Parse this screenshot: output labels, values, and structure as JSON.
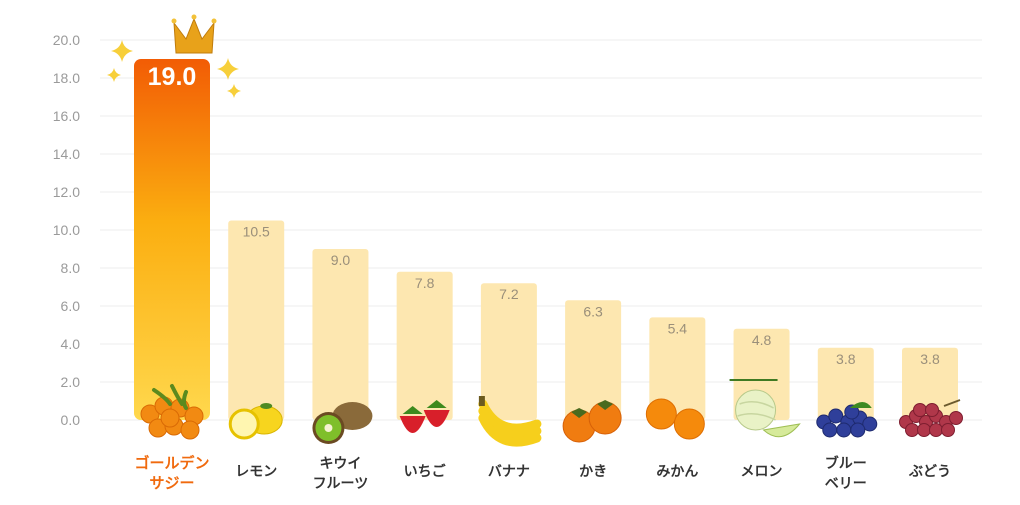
{
  "chart_data": {
    "type": "bar",
    "ylim": [
      0,
      20
    ],
    "yticks": [
      "0.0",
      "2.0",
      "4.0",
      "6.0",
      "8.0",
      "10.0",
      "12.0",
      "14.0",
      "16.0",
      "18.0",
      "20.0"
    ],
    "categories": [
      [
        "ゴールデン",
        "サジー"
      ],
      [
        "レモン"
      ],
      [
        "キウイ",
        "フルーツ"
      ],
      [
        "いちご"
      ],
      [
        "バナナ"
      ],
      [
        "かき"
      ],
      [
        "みかん"
      ],
      [
        "メロン"
      ],
      [
        "ブルー",
        "ベリー"
      ],
      [
        "ぶどう"
      ]
    ],
    "values": [
      19.0,
      10.5,
      9.0,
      7.8,
      7.2,
      6.3,
      5.4,
      4.8,
      3.8,
      3.8
    ],
    "value_labels": [
      "19.0",
      "10.5",
      "9.0",
      "7.8",
      "7.2",
      "6.3",
      "5.4",
      "4.8",
      "3.8",
      "3.8"
    ],
    "highlight_index": 0,
    "grid": true
  },
  "colors": {
    "grid": "#ececec",
    "bar": "#fde7b0",
    "highlight_top": "#f25c05",
    "highlight_bottom": "#ffd54a",
    "highlight_text": "#f06a0e",
    "crown": "#e8a21a",
    "sparkle": "#f7cf3a"
  },
  "icons": [
    "sea-buckthorn-icon",
    "lemon-icon",
    "kiwi-icon",
    "strawberry-icon",
    "banana-icon",
    "persimmon-icon",
    "mandarin-icon",
    "melon-icon",
    "blueberry-icon",
    "grape-icon"
  ]
}
